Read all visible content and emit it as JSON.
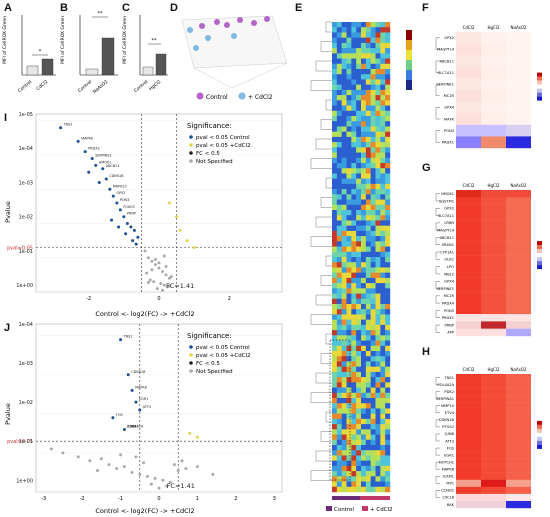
{
  "panels": {
    "A": {
      "letter": "A",
      "ylabel": "MFI of CellROX Green",
      "categories": [
        "Control",
        "CdCl2"
      ],
      "values": [
        750,
        1350
      ],
      "sig": "*",
      "ticks": [
        "0",
        "500",
        "1000",
        "1500",
        "2000"
      ]
    },
    "B": {
      "letter": "B",
      "ylabel": "MFI of CellROX Green",
      "categories": [
        "Control",
        "NaAsO2"
      ],
      "values": [
        1100,
        3800
      ],
      "sig": "**",
      "ticks": [
        "0",
        "1000",
        "2000",
        "3000",
        "4000",
        "5000"
      ]
    },
    "C": {
      "letter": "C",
      "ylabel": "MFI of CellROX Green",
      "categories": [
        "Control",
        "HgCl2"
      ],
      "values": [
        1200,
        2400
      ],
      "sig": "**",
      "ticks": [
        "0",
        "1000",
        "2000",
        "3000",
        "4000"
      ]
    },
    "D": {
      "letter": "D",
      "legend": [
        "Control",
        "+ CdCl2"
      ],
      "colors": [
        "#b266c8",
        "#7fb8e0"
      ]
    },
    "E": {
      "letter": "E",
      "legend": [
        "Control",
        "+ CdCl2"
      ],
      "colors": [
        "#6a2a78",
        "#c23a6a"
      ]
    },
    "F": {
      "letter": "F",
      "cols": [
        "CdCl2",
        "HgCl2",
        "NaAsO2"
      ],
      "rows": [
        "GPX2",
        "MAGPTL4",
        "ABCB11",
        "SLC7A11",
        "SERPINE1",
        "MC1R",
        "GPX4",
        "MAFK",
        "PON3",
        "PRDX1"
      ]
    },
    "G": {
      "letter": "G",
      "cols": [
        "CdCl2",
        "HgCl2",
        "NaAsO2"
      ],
      "rows": [
        "HMOX1",
        "SQSTM1",
        "GPX2",
        "SLC7A11",
        "LRRN",
        "MAGPTL4",
        "ABCB11",
        "SRXN1",
        "CYP1A1",
        "OLR1",
        "LPO",
        "MBL2",
        "GPX4",
        "SERPINE1",
        "MC1R",
        "PRDX4",
        "PON3",
        "PRDX1",
        "PRNP",
        "APP"
      ]
    },
    "H": {
      "letter": "H",
      "cols": [
        "CdCl2",
        "HgCl2",
        "NaAsO2"
      ],
      "rows": [
        "TNS1",
        "COL4A2A",
        "PDK2",
        "SERPINA1",
        "MMP10",
        "ETV4",
        "CDKN1B",
        "PTGS2",
        "JUNB",
        "ATF3",
        "FOS",
        "EGR1",
        "NOTCH1",
        "MAPK8",
        "ICAM1",
        "MYC",
        "CCND1",
        "CXCL8",
        "BAK"
      ]
    },
    "I": {
      "letter": "I"
    },
    "J": {
      "letter": "J"
    }
  },
  "volcano_legend": {
    "title": "Significance:",
    "items": [
      "pval < 0.05 Control",
      "pval < 0.05 +CdCl2",
      "FC < 0.5",
      "Not Specified"
    ],
    "colors": [
      "#1d4f91",
      "#e6d34a",
      "#222222",
      "#aaaaaa"
    ]
  },
  "chart_data": [
    {
      "type": "scatter",
      "panel": "I",
      "title": "",
      "xlabel": "Control <- log2(FC) -> +CdCl2",
      "ylabel": "Pvalue",
      "xlim": [
        -3.5,
        3.5
      ],
      "x_ticks": [
        "-2",
        "0",
        "2"
      ],
      "y_ticks": [
        "1e-05",
        "1e-04",
        "1e-03",
        "1e-02",
        "pval=0.05",
        "1e-01",
        "1e+00"
      ],
      "annotations": [
        "pval=0.05",
        "FC=1.41"
      ],
      "labels": [
        "TNS1",
        "MAPK8",
        "PRDX2",
        "SERPINE1",
        "HMOX1",
        "ABCB11",
        "CDKN1B",
        "MAPK10",
        "GPX2",
        "PON3",
        "FOXO3",
        "PRNP"
      ],
      "series": [
        {
          "name": "pval < 0.05 Control",
          "color": "#1d4f91",
          "x": [
            -2.8,
            -2.3,
            -2.1,
            -1.9,
            -1.8,
            -1.6,
            -1.5,
            -1.4,
            -1.3,
            -1.2,
            -1.1,
            -1.0,
            -0.9,
            -0.8,
            -0.7,
            -0.6,
            -2.0,
            -1.7,
            -1.35,
            -1.15,
            -0.95,
            -0.75,
            -0.65
          ],
          "y": [
            4.8,
            4.4,
            4.1,
            3.9,
            3.7,
            3.6,
            3.3,
            3.0,
            2.8,
            2.6,
            2.4,
            2.2,
            2.0,
            1.9,
            1.8,
            1.6,
            3.5,
            3.2,
            2.1,
            1.9,
            1.7,
            1.5,
            1.4
          ]
        },
        {
          "name": "pval < 0.05 +CdCl2",
          "color": "#e6d34a",
          "x": [
            0.3,
            0.5,
            0.6,
            0.8,
            1.0
          ],
          "y": [
            2.6,
            2.2,
            1.8,
            1.5,
            1.3
          ]
        },
        {
          "name": "Not Specified",
          "color": "#aaaaaa",
          "x": [
            -0.4,
            -0.3,
            -0.2,
            -0.1,
            0.0,
            0.1,
            0.2,
            0.3,
            -0.25,
            -0.15,
            0.05,
            0.15,
            0.25,
            -0.35,
            0.35,
            -0.05,
            0.1,
            -0.2,
            0.2,
            0.0,
            -0.1,
            0.15,
            -0.3,
            0.3
          ],
          "y": [
            1.2,
            1.0,
            0.9,
            0.8,
            0.7,
            0.6,
            0.5,
            0.4,
            0.35,
            0.3,
            0.25,
            0.2,
            0.15,
            0.55,
            0.45,
            0.1,
            0.05,
            0.65,
            0.75,
            0.85,
            0.95,
            1.05,
            0.28,
            0.18
          ]
        }
      ]
    },
    {
      "type": "scatter",
      "panel": "J",
      "title": "",
      "xlabel": "Control <- log2(FC) -> +CdCl2",
      "ylabel": "Pvalue",
      "xlim": [
        -3.2,
        3.2
      ],
      "x_ticks": [
        "-3",
        "-2",
        "-1",
        "0",
        "1",
        "2",
        "3"
      ],
      "y_ticks": [
        "1e-04",
        "1e-03",
        "1e-02",
        "pval=0.05",
        "1e-01",
        "1e+00"
      ],
      "annotations": [
        "pval=0.05",
        "FC=1.41"
      ],
      "labels": [
        "TNS1",
        "CDKN1B",
        "MAPK8",
        "EGR1",
        "ATF3",
        "FOS",
        "JUNB",
        "COL4A2A",
        "ICAM1"
      ],
      "series": [
        {
          "name": "pval < 0.05 Control",
          "color": "#1d4f91",
          "x": [
            -1.0,
            -0.8,
            -0.7,
            -0.6,
            -0.5,
            -1.2,
            -0.9
          ],
          "y": [
            3.9,
            3.0,
            2.6,
            2.3,
            2.1,
            1.9,
            1.6
          ]
        },
        {
          "name": "pval < 0.05 +CdCl2",
          "color": "#e6d34a",
          "x": [
            0.8,
            1.0
          ],
          "y": [
            1.5,
            1.4
          ]
        },
        {
          "name": "Not Specified",
          "color": "#aaaaaa",
          "x": [
            -2.8,
            -2.5,
            -2.1,
            -1.8,
            -1.5,
            -1.3,
            -1.1,
            -0.9,
            -0.7,
            -0.5,
            -0.3,
            -0.1,
            0.1,
            0.3,
            0.5,
            0.7,
            0.2,
            -0.2,
            0.0,
            -0.4,
            0.4,
            -0.6,
            0.6,
            -1.0,
            1.0,
            -1.6,
            1.4
          ],
          "y": [
            1.1,
            1.0,
            0.9,
            0.8,
            0.85,
            0.7,
            0.6,
            0.65,
            0.5,
            0.45,
            0.4,
            0.35,
            0.3,
            0.25,
            0.55,
            0.6,
            0.15,
            0.2,
            0.1,
            0.75,
            0.7,
            0.9,
            0.8,
            0.95,
            0.65,
            0.55,
            0.45
          ]
        }
      ]
    }
  ]
}
